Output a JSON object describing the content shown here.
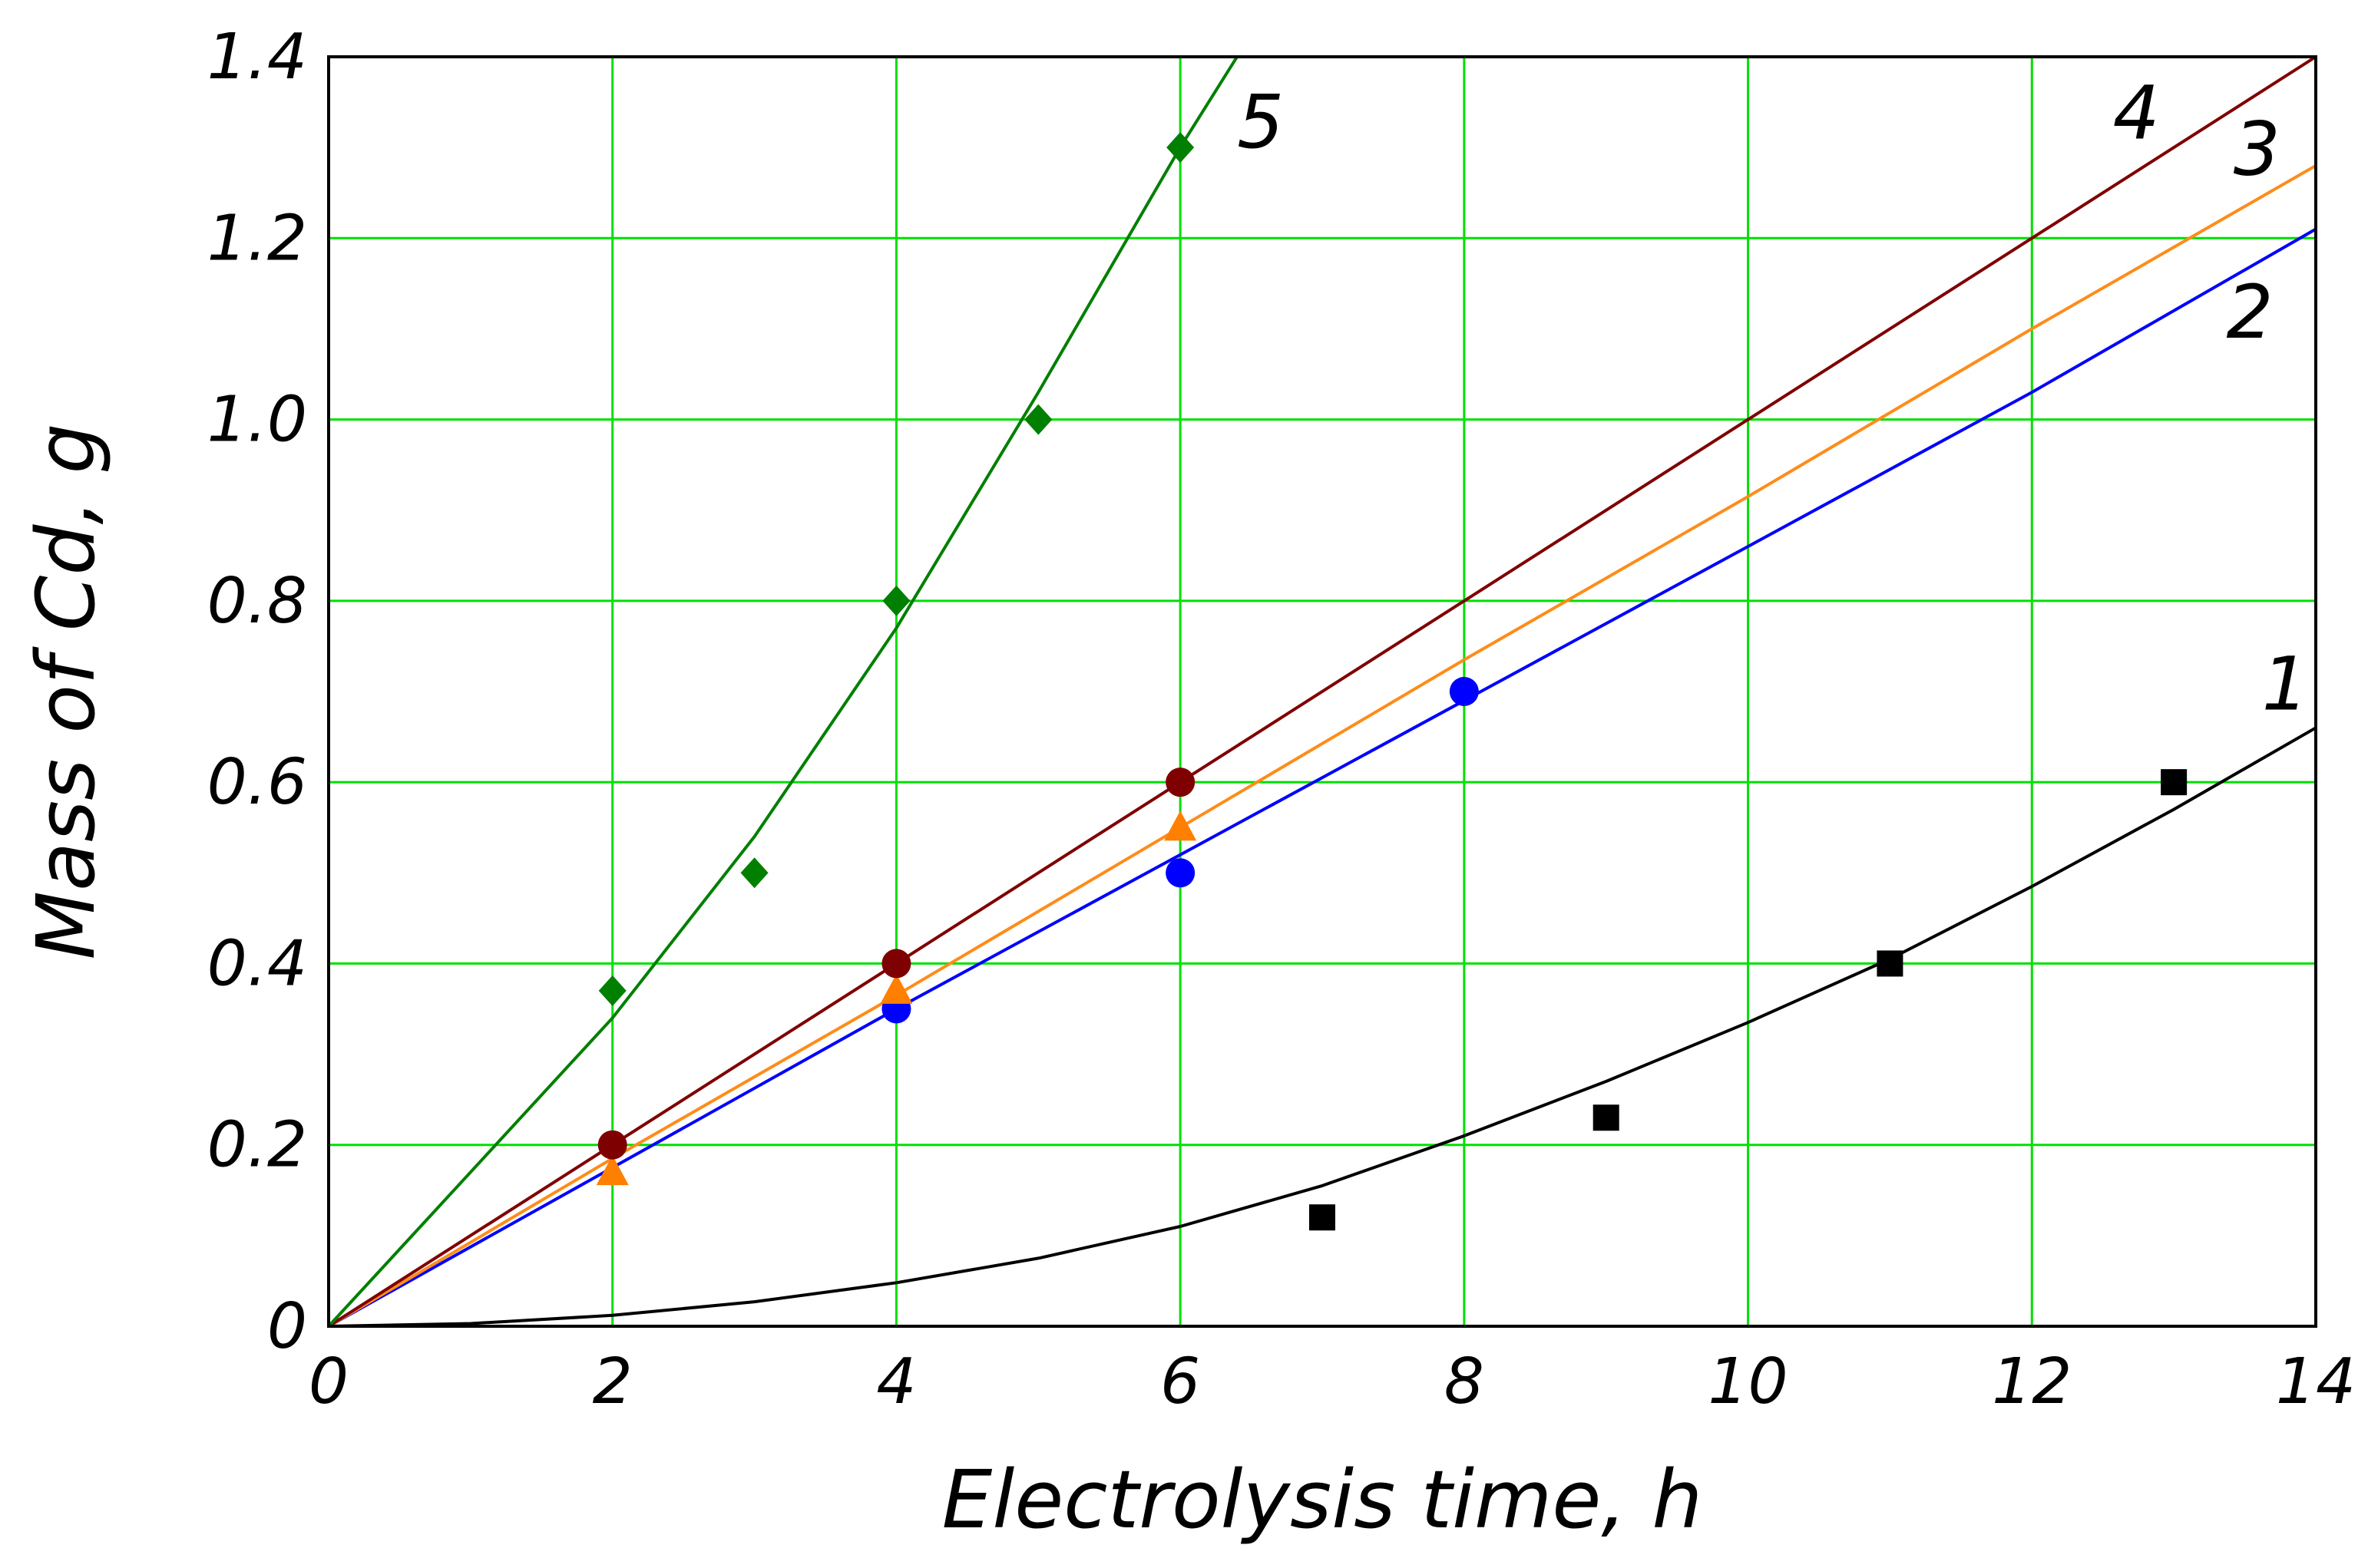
{
  "chart_data": {
    "type": "scatter",
    "xlabel": "Electrolysis time, h",
    "ylabel": "Mass of Cd, g",
    "xlim": [
      0,
      14
    ],
    "ylim": [
      0,
      1.4
    ],
    "x_ticks": [
      0,
      2,
      4,
      6,
      8,
      10,
      12,
      14
    ],
    "y_ticks": [
      0,
      0.2,
      0.4,
      0.6,
      0.8,
      1.0,
      1.2,
      1.4
    ],
    "x_tick_labels": [
      "0",
      "2",
      "4",
      "6",
      "8",
      "10",
      "12",
      "14"
    ],
    "y_tick_labels": [
      "0",
      "0.2",
      "0.4",
      "0.6",
      "0.8",
      "1.0",
      "1.2",
      "1.4"
    ],
    "grid": true,
    "grid_color": "#00e000",
    "series": [
      {
        "label": "1",
        "color": "#000000",
        "line_color": "#000000",
        "marker": "square",
        "points": {
          "x": [
            7,
            9,
            11,
            13
          ],
          "y": [
            0.12,
            0.23,
            0.4,
            0.6
          ]
        },
        "fit": {
          "x": [
            0,
            1,
            2,
            3,
            4,
            5,
            6,
            7,
            8,
            9,
            10,
            11,
            12,
            13,
            14
          ],
          "y": [
            0,
            0.003,
            0.012,
            0.027,
            0.048,
            0.075,
            0.11,
            0.155,
            0.21,
            0.27,
            0.335,
            0.405,
            0.485,
            0.57,
            0.66
          ]
        },
        "tag_at": [
          13.95,
          0.68
        ]
      },
      {
        "label": "2",
        "color": "#0000ff",
        "line_color": "#0000ff",
        "marker": "circle",
        "points": {
          "x": [
            4,
            6,
            8
          ],
          "y": [
            0.35,
            0.5,
            0.7
          ]
        },
        "fit": {
          "x": [
            0,
            2,
            4,
            6,
            8,
            10,
            12,
            14
          ],
          "y": [
            0,
            0.175,
            0.35,
            0.52,
            0.69,
            0.86,
            1.03,
            1.21
          ]
        },
        "tag_at": [
          13.7,
          1.09
        ]
      },
      {
        "label": "3",
        "color": "#ff7f00",
        "line_color": "#ff8c1a",
        "marker": "triangle",
        "points": {
          "x": [
            2,
            4,
            6
          ],
          "y": [
            0.17,
            0.37,
            0.55
          ]
        },
        "fit": {
          "x": [
            0,
            2,
            4,
            6,
            8,
            10,
            12,
            14
          ],
          "y": [
            0,
            0.185,
            0.365,
            0.55,
            0.735,
            0.915,
            1.1,
            1.28
          ]
        },
        "tag_at": [
          13.75,
          1.27
        ]
      },
      {
        "label": "4",
        "color": "#7f0000",
        "line_color": "#7f0000",
        "marker": "circle",
        "points": {
          "x": [
            2,
            4,
            6
          ],
          "y": [
            0.2,
            0.4,
            0.6
          ]
        },
        "fit": {
          "x": [
            0,
            2,
            4,
            6,
            8,
            10,
            12,
            14
          ],
          "y": [
            0,
            0.2,
            0.4,
            0.6,
            0.8,
            1.0,
            1.2,
            1.4
          ]
        },
        "tag_at": [
          12.9,
          1.31
        ]
      },
      {
        "label": "5",
        "color": "#007f00",
        "line_color": "#007f00",
        "marker": "diamond",
        "points": {
          "x": [
            2,
            3,
            4,
            5,
            6
          ],
          "y": [
            0.37,
            0.5,
            0.8,
            1.0,
            1.3
          ]
        },
        "fit": {
          "x": [
            0,
            1,
            2,
            3,
            4,
            5,
            6,
            6.4
          ],
          "y": [
            0,
            0.17,
            0.34,
            0.54,
            0.77,
            1.03,
            1.3,
            1.4
          ]
        },
        "tag_at": [
          6.4,
          1.3
        ]
      }
    ]
  }
}
